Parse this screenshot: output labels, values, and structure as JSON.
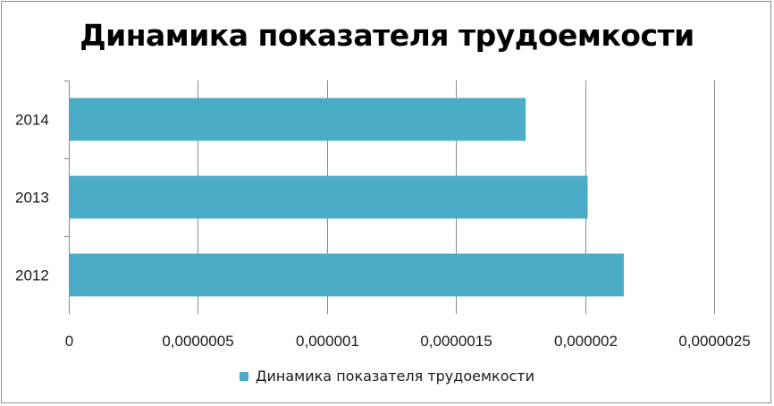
{
  "chart_data": {
    "type": "bar",
    "orientation": "horizontal",
    "title": "Динамика показателя трудоемкости",
    "categories": [
      "2012",
      "2013",
      "2014"
    ],
    "series": [
      {
        "name": "Динамика показателя трудоемкости",
        "values": [
          2.15e-06,
          2.01e-06,
          1.77e-06
        ],
        "color": "#4bacc6"
      }
    ],
    "xlim": [
      0,
      2.5e-06
    ],
    "x_ticks": [
      0,
      5e-07,
      1e-06,
      1.5e-06,
      2e-06,
      2.5e-06
    ],
    "x_tick_labels": [
      "0",
      "0,0000005",
      "0,000001",
      "0,0000015",
      "0,000002",
      "0,0000025"
    ],
    "grid": true,
    "legend_position": "bottom"
  }
}
